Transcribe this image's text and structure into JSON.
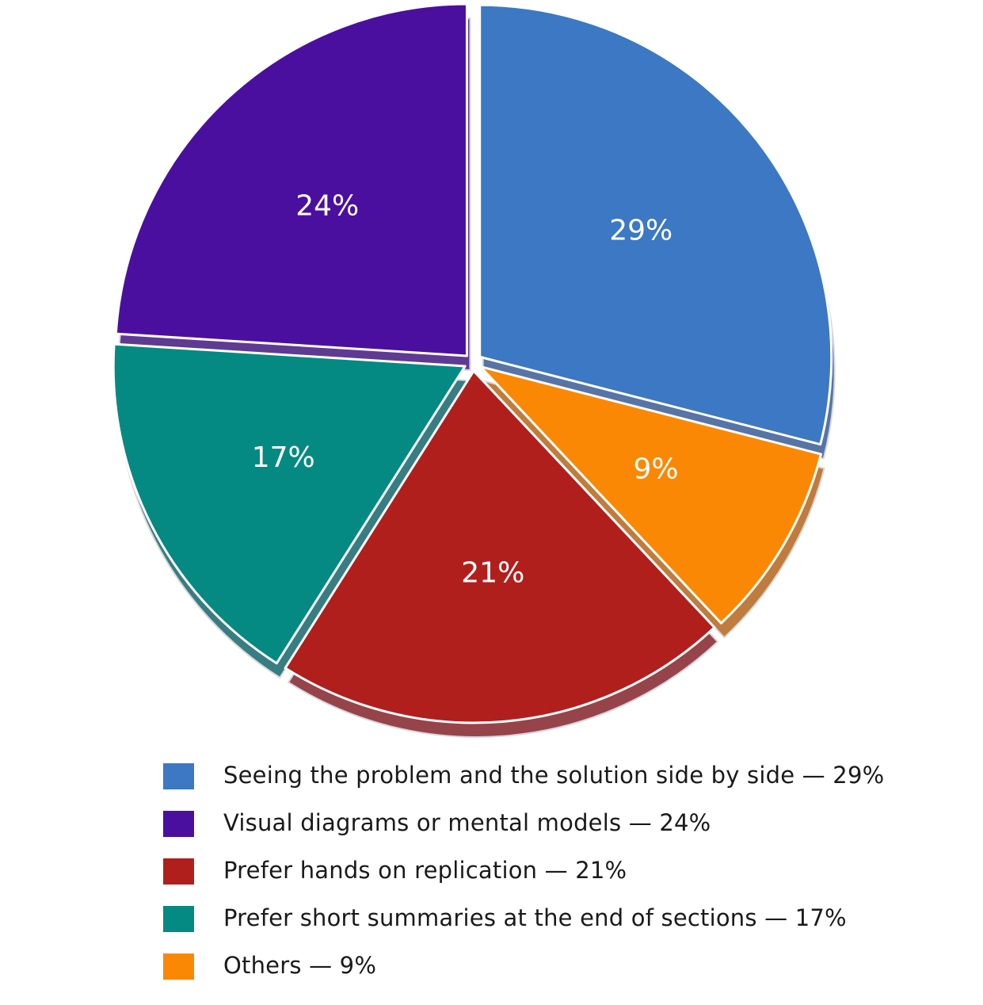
{
  "chart_data": {
    "type": "pie",
    "title": "",
    "slices": [
      {
        "label": "Seeing the problem and the solution side by side",
        "value": 29,
        "display": "29%",
        "color": "#3C78C3"
      },
      {
        "label": "Others",
        "value": 9,
        "display": "9%",
        "color": "#FB8804"
      },
      {
        "label": "Prefer hands on replication",
        "value": 21,
        "display": "21%",
        "color": "#B11F1C"
      },
      {
        "label": "Prefer short summaries at the end of sections",
        "value": 17,
        "display": "17%",
        "color": "#048A82"
      },
      {
        "label": "Visual diagrams or mental models",
        "value": 24,
        "display": "24%",
        "color": "#4B0FA0"
      }
    ],
    "legend": [
      {
        "text": "Seeing the problem and the solution side by side — 29%",
        "color": "#3C78C3"
      },
      {
        "text": "Visual diagrams or mental models — 24%",
        "color": "#4B0FA0"
      },
      {
        "text": "Prefer hands on replication — 21%",
        "color": "#B11F1C"
      },
      {
        "text": "Prefer short summaries at the end of sections — 17%",
        "color": "#048A82"
      },
      {
        "text": "Others — 9%",
        "color": "#FB8804"
      }
    ],
    "legend_position": "bottom"
  }
}
